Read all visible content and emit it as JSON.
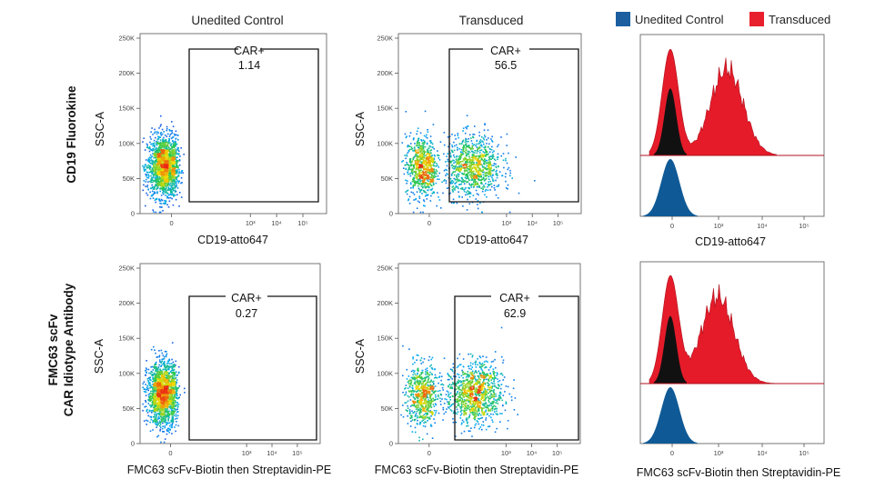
{
  "columns": [
    "Unedited Control",
    "Transduced"
  ],
  "rows": [
    {
      "label_lines": [
        "CD19 Fluorokine"
      ],
      "xlabel": "CD19-atto647",
      "hist_xlabel": "CD19-atto647",
      "gates": [
        {
          "name": "CAR+",
          "value": "1.14"
        },
        {
          "name": "CAR+",
          "value": "56.5"
        }
      ]
    },
    {
      "label_lines": [
        "FMC63 scFv",
        "CAR Idiotype Antibody"
      ],
      "xlabel": "FMC63 scFv-Biotin then Streptavidin-PE",
      "hist_xlabel": "FMC63 scFv-Biotin then Streptavidin-PE",
      "gates": [
        {
          "name": "CAR+",
          "value": "0.27"
        },
        {
          "name": "CAR+",
          "value": "62.9"
        }
      ]
    }
  ],
  "legend": [
    {
      "label": "Unedited Control",
      "color": "#1b5fa0"
    },
    {
      "label": "Transduced",
      "color": "#e8202e"
    }
  ],
  "colors": {
    "control": "#0f5a96",
    "transduced": "#e51b2a",
    "overlap": "#111111"
  },
  "chart_data": [
    {
      "type": "scatter",
      "title": "Unedited Control",
      "row": "CD19 Fluorokine",
      "xlabel": "CD19-atto647",
      "ylabel": "SSC-A",
      "xticks": [
        "0",
        "10³",
        "10⁴",
        "10⁵"
      ],
      "yticks": [
        "0",
        "50K",
        "100K",
        "150K",
        "200K",
        "250K"
      ],
      "ylim": [
        0,
        250000
      ],
      "populations": [
        {
          "x_center": -0.3,
          "y_center": 68000,
          "fraction": 1.0
        }
      ],
      "gate": {
        "label": "CAR+",
        "percent": 1.14
      }
    },
    {
      "type": "scatter",
      "title": "Transduced",
      "row": "CD19 Fluorokine",
      "xlabel": "CD19-atto647",
      "ylabel": "SSC-A",
      "xticks": [
        "0",
        "10³",
        "10⁴",
        "10⁵"
      ],
      "yticks": [
        "0",
        "50K",
        "100K",
        "150K",
        "200K",
        "250K"
      ],
      "ylim": [
        0,
        250000
      ],
      "populations": [
        {
          "x_center": -0.3,
          "y_center": 68000,
          "fraction": 0.44
        },
        {
          "x_center": 2.7,
          "y_center": 68000,
          "fraction": 0.56
        }
      ],
      "gate": {
        "label": "CAR+",
        "percent": 56.5
      }
    },
    {
      "type": "area",
      "row": "CD19 Fluorokine",
      "xlabel": "CD19-atto647",
      "xticks": [
        "0",
        "10³",
        "10⁴",
        "10⁵"
      ],
      "series": [
        {
          "name": "Unedited Control",
          "peak_x": -0.3
        },
        {
          "name": "Transduced",
          "peaks_x": [
            -0.3,
            3.0
          ]
        }
      ]
    },
    {
      "type": "scatter",
      "title": "Unedited Control",
      "row": "FMC63 scFv CAR Idiotype Antibody",
      "xlabel": "FMC63 scFv-Biotin then Streptavidin-PE",
      "ylabel": "SSC-A",
      "xticks": [
        "0",
        "10³",
        "10⁴",
        "10⁵"
      ],
      "yticks": [
        "0",
        "50K",
        "100K",
        "150K",
        "200K",
        "250K"
      ],
      "ylim": [
        0,
        250000
      ],
      "populations": [
        {
          "x_center": -0.3,
          "y_center": 72000,
          "fraction": 1.0
        }
      ],
      "gate": {
        "label": "CAR+",
        "percent": 0.27
      }
    },
    {
      "type": "scatter",
      "title": "Transduced",
      "row": "FMC63 scFv CAR Idiotype Antibody",
      "xlabel": "FMC63 scFv-Biotin then Streptavidin-PE",
      "ylabel": "SSC-A",
      "xticks": [
        "0",
        "10³",
        "10⁴",
        "10⁵"
      ],
      "yticks": [
        "0",
        "50K",
        "100K",
        "150K",
        "200K",
        "250K"
      ],
      "ylim": [
        0,
        250000
      ],
      "populations": [
        {
          "x_center": -0.3,
          "y_center": 70000,
          "fraction": 0.37
        },
        {
          "x_center": 2.8,
          "y_center": 72000,
          "fraction": 0.63
        }
      ],
      "gate": {
        "label": "CAR+",
        "percent": 62.9
      }
    },
    {
      "type": "area",
      "row": "FMC63 scFv CAR Idiotype Antibody",
      "xlabel": "FMC63 scFv-Biotin then Streptavidin-PE",
      "xticks": [
        "0",
        "10³",
        "10⁴",
        "10⁵"
      ],
      "series": [
        {
          "name": "Unedited Control",
          "peak_x": -0.3
        },
        {
          "name": "Transduced",
          "peaks_x": [
            -0.3,
            3.1
          ]
        }
      ]
    }
  ]
}
